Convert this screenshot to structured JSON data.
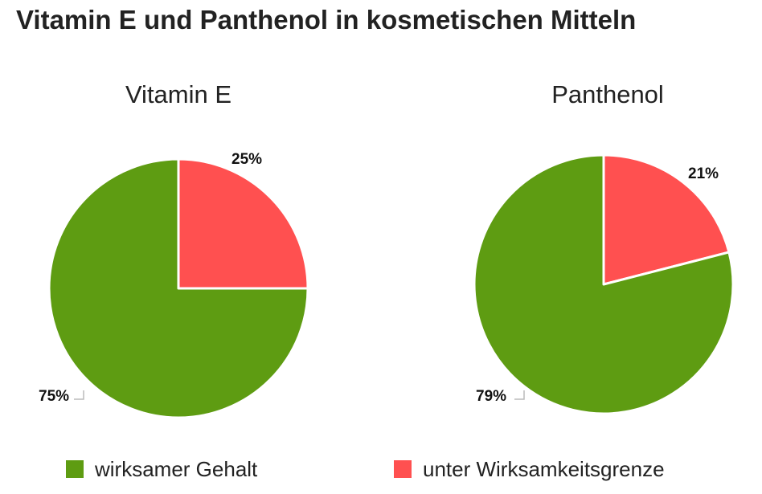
{
  "title": "Vitamin E und Panthenol in kosmetischen Mitteln",
  "legend": {
    "items": [
      {
        "label": "wirksamer Gehalt",
        "color": "#5e9c12"
      },
      {
        "label": "unter Wirksamkeitsgrenze",
        "color": "#ff5050"
      }
    ]
  },
  "chart_data": [
    {
      "type": "pie",
      "title": "Vitamin E",
      "categories": [
        "wirksamer Gehalt",
        "unter Wirksamkeitsgrenze"
      ],
      "values": [
        75,
        25
      ],
      "labels": [
        "75%",
        "25%"
      ],
      "colors": [
        "#5e9c12",
        "#ff5050"
      ],
      "legend": "bottom"
    },
    {
      "type": "pie",
      "title": "Panthenol",
      "categories": [
        "wirksamer Gehalt",
        "unter Wirksamkeitsgrenze"
      ],
      "values": [
        79,
        21
      ],
      "labels": [
        "79%",
        "21%"
      ],
      "colors": [
        "#5e9c12",
        "#ff5050"
      ],
      "legend": "bottom"
    }
  ]
}
